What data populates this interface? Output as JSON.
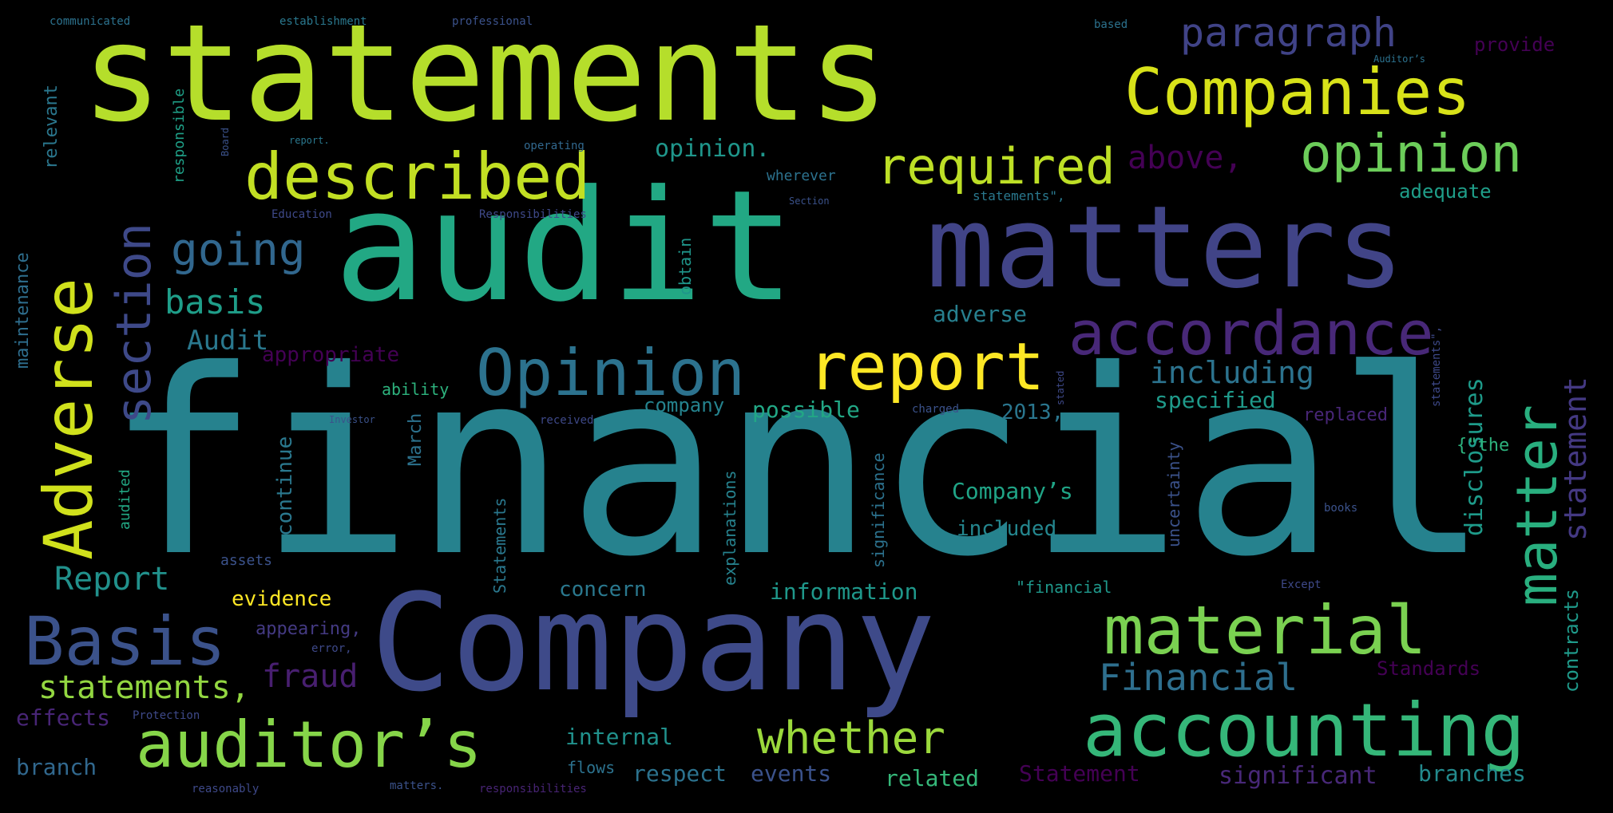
{
  "words": [
    {
      "id": "financial",
      "text": "financial",
      "color": "#26828e"
    },
    {
      "id": "statements",
      "text": "statements",
      "color": "#b5de2b"
    },
    {
      "id": "audit",
      "text": "audit",
      "color": "#22a884"
    },
    {
      "id": "company",
      "text": "Company",
      "color": "#3e4a89"
    },
    {
      "id": "matters",
      "text": "matters",
      "color": "#414487"
    },
    {
      "id": "companies",
      "text": "Companies",
      "color": "#d8e219"
    },
    {
      "id": "described",
      "text": "described",
      "color": "#c2df23"
    },
    {
      "id": "opinion-cap",
      "text": "Opinion",
      "color": "#2c728e"
    },
    {
      "id": "report",
      "text": "report",
      "color": "#fde725"
    },
    {
      "id": "accordance",
      "text": "accordance",
      "color": "#482878"
    },
    {
      "id": "material",
      "text": "material",
      "color": "#7ad151"
    },
    {
      "id": "accounting",
      "text": "accounting",
      "color": "#35b779"
    },
    {
      "id": "auditors",
      "text": "auditor’s",
      "color": "#86d549"
    },
    {
      "id": "basis-cap",
      "text": "Basis",
      "color": "#3b528b"
    },
    {
      "id": "adverse-cap",
      "text": "Adverse",
      "color": "#d0e11c"
    },
    {
      "id": "section",
      "text": "section",
      "color": "#3e4989"
    },
    {
      "id": "required",
      "text": "required",
      "color": "#bddf26"
    },
    {
      "id": "opinion",
      "text": "opinion",
      "color": "#6ccd5a"
    },
    {
      "id": "paragraph",
      "text": "paragraph",
      "color": "#404387"
    },
    {
      "id": "going",
      "text": "going",
      "color": "#31678e"
    },
    {
      "id": "matter",
      "text": "matter",
      "color": "#29af7f"
    },
    {
      "id": "whether",
      "text": "whether",
      "color": "#9bd93c"
    },
    {
      "id": "financial-cap",
      "text": "Financial",
      "color": "#2e6f8e"
    },
    {
      "id": "including",
      "text": "including",
      "color": "#2c738e"
    },
    {
      "id": "above",
      "text": "above,",
      "color": "#440154"
    },
    {
      "id": "basis",
      "text": "basis",
      "color": "#1f9e89"
    },
    {
      "id": "audit-cap",
      "text": "Audit",
      "color": "#2a788e"
    },
    {
      "id": "report-cap",
      "text": "Report",
      "color": "#21918c"
    },
    {
      "id": "statements-comma",
      "text": "statements,",
      "color": "#93d741"
    },
    {
      "id": "fraud",
      "text": "fraud",
      "color": "#481f70"
    },
    {
      "id": "statement",
      "text": "statement",
      "color": "#443983"
    },
    {
      "id": "opinion-dot",
      "text": "opinion.",
      "color": "#1f968b"
    },
    {
      "id": "appropriate",
      "text": "appropriate",
      "color": "#440154"
    },
    {
      "id": "adverse",
      "text": "adverse",
      "color": "#277f8e"
    },
    {
      "id": "specified",
      "text": "specified",
      "color": "#1f9a8a"
    },
    {
      "id": "possible",
      "text": "possible",
      "color": "#22a785"
    },
    {
      "id": "company",
      "text": "company",
      "color": "#25838e"
    },
    {
      "id": "2013",
      "text": "2013,",
      "color": "#2a768e"
    },
    {
      "id": "companys",
      "text": "Company’s",
      "color": "#20a486"
    },
    {
      "id": "included",
      "text": "included",
      "color": "#24868e"
    },
    {
      "id": "disclosures",
      "text": "disclosures",
      "color": "#1e9b8a"
    },
    {
      "id": "information",
      "text": "information",
      "color": "#1f988b"
    },
    {
      "id": "evidence",
      "text": "evidence",
      "color": "#fde725"
    },
    {
      "id": "concern",
      "text": "concern",
      "color": "#2a788e"
    },
    {
      "id": "internal",
      "text": "internal",
      "color": "#21918c"
    },
    {
      "id": "branch",
      "text": "branch",
      "color": "#31688e"
    },
    {
      "id": "effects",
      "text": "effects",
      "color": "#482576"
    },
    {
      "id": "respect",
      "text": "respect",
      "color": "#2c728e"
    },
    {
      "id": "events",
      "text": "events",
      "color": "#3b528b"
    },
    {
      "id": "related",
      "text": "related",
      "color": "#35b779"
    },
    {
      "id": "statement-cap",
      "text": "Statement",
      "color": "#440154"
    },
    {
      "id": "significant",
      "text": "significant",
      "color": "#482878"
    },
    {
      "id": "branches",
      "text": "branches",
      "color": "#238a8d"
    },
    {
      "id": "standards",
      "text": "Standards",
      "color": "#440154"
    },
    {
      "id": "adequate",
      "text": "adequate",
      "color": "#1f9e89"
    },
    {
      "id": "replaced",
      "text": "replaced",
      "color": "#482677"
    },
    {
      "id": "provide",
      "text": "provide",
      "color": "#440154"
    },
    {
      "id": "the-quoted",
      "text": "{\"the",
      "color": "#2db27d"
    },
    {
      "id": "contracts",
      "text": "contracts",
      "color": "#1f9a8a"
    },
    {
      "id": "continue",
      "text": "continue",
      "color": "#2a788e"
    },
    {
      "id": "maintenance",
      "text": "maintenance",
      "color": "#2e6e8e"
    },
    {
      "id": "relevant",
      "text": "relevant",
      "color": "#2a778e"
    },
    {
      "id": "responsible",
      "text": "responsible",
      "color": "#1fa188"
    },
    {
      "id": "uncertainty",
      "text": "uncertainty",
      "color": "#3b528b"
    },
    {
      "id": "significance",
      "text": "significance",
      "color": "#2c728e"
    },
    {
      "id": "explanations",
      "text": "explanations",
      "color": "#26828e"
    },
    {
      "id": "march",
      "text": "March",
      "color": "#2c728e"
    },
    {
      "id": "statements-cap",
      "text": "Statements",
      "color": "#2a788e"
    },
    {
      "id": "audited",
      "text": "audited",
      "color": "#22a884"
    },
    {
      "id": "obtain",
      "text": "obtain",
      "color": "#1f968b"
    },
    {
      "id": "ability",
      "text": "ability",
      "color": "#2db27d"
    },
    {
      "id": "assets",
      "text": "assets",
      "color": "#3b528b"
    },
    {
      "id": "appearing",
      "text": "appearing,",
      "color": "#443a83"
    },
    {
      "id": "financial-quoted",
      "text": "\"financial",
      "color": "#1f988b"
    },
    {
      "id": "wherever",
      "text": "wherever",
      "color": "#2c728e"
    },
    {
      "id": "flows",
      "text": "flows",
      "color": "#2c728e"
    },
    {
      "id": "communicated",
      "text": "communicated",
      "color": "#2c728e"
    },
    {
      "id": "establishment",
      "text": "establishment",
      "color": "#2a788e"
    },
    {
      "id": "professional",
      "text": "professional",
      "color": "#3b528b"
    },
    {
      "id": "based",
      "text": "based",
      "color": "#2c728e"
    },
    {
      "id": "auditors-cap",
      "text": "Auditor’s",
      "color": "#2c728e"
    },
    {
      "id": "report-dot",
      "text": "report.",
      "color": "#2a788e"
    },
    {
      "id": "operating",
      "text": "operating",
      "color": "#31688e"
    },
    {
      "id": "board",
      "text": "Board",
      "color": "#3b528b"
    },
    {
      "id": "statements-quoted",
      "text": "statements\",",
      "color": "#2a788e"
    },
    {
      "id": "section-cap",
      "text": "Section",
      "color": "#3b528b"
    },
    {
      "id": "education",
      "text": "Education",
      "color": "#3e4989"
    },
    {
      "id": "responsibilities-cap",
      "text": "Responsibilities",
      "color": "#3e4989"
    },
    {
      "id": "investor",
      "text": "Investor",
      "color": "#3b528b"
    },
    {
      "id": "received",
      "text": "received",
      "color": "#3e4989"
    },
    {
      "id": "charged",
      "text": "charged",
      "color": "#3b528b"
    },
    {
      "id": "error",
      "text": "error,",
      "color": "#3e4989"
    },
    {
      "id": "protection",
      "text": "Protection",
      "color": "#3e4989"
    },
    {
      "id": "reasonably",
      "text": "reasonably",
      "color": "#3e4989"
    },
    {
      "id": "matters-dot",
      "text": "matters.",
      "color": "#3b528b"
    },
    {
      "id": "responsibilities",
      "text": "responsibilities",
      "color": "#482475"
    },
    {
      "id": "except",
      "text": "Except",
      "color": "#3e4989"
    },
    {
      "id": "books",
      "text": "books",
      "color": "#3b528b"
    },
    {
      "id": "statements-quoted-v",
      "text": "statements\",",
      "color": "#3e4989"
    },
    {
      "id": "stated",
      "text": "stated",
      "color": "#3e4989"
    }
  ]
}
